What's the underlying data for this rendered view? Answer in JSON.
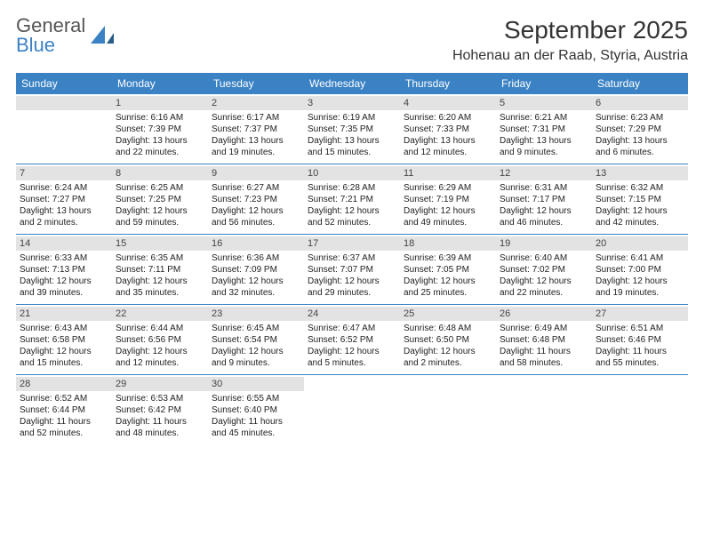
{
  "logo": {
    "word1": "General",
    "word2": "Blue"
  },
  "title": "September 2025",
  "location": "Hohenau an der Raab, Styria, Austria",
  "colors": {
    "accent": "#3b82c4",
    "dayBarBg": "#e3e3e3",
    "text": "#222222",
    "bg": "#ffffff"
  },
  "daysOfWeek": [
    "Sunday",
    "Monday",
    "Tuesday",
    "Wednesday",
    "Thursday",
    "Friday",
    "Saturday"
  ],
  "weeks": [
    [
      {
        "n": "",
        "lines": []
      },
      {
        "n": "1",
        "lines": [
          "Sunrise: 6:16 AM",
          "Sunset: 7:39 PM",
          "Daylight: 13 hours",
          "and 22 minutes."
        ]
      },
      {
        "n": "2",
        "lines": [
          "Sunrise: 6:17 AM",
          "Sunset: 7:37 PM",
          "Daylight: 13 hours",
          "and 19 minutes."
        ]
      },
      {
        "n": "3",
        "lines": [
          "Sunrise: 6:19 AM",
          "Sunset: 7:35 PM",
          "Daylight: 13 hours",
          "and 15 minutes."
        ]
      },
      {
        "n": "4",
        "lines": [
          "Sunrise: 6:20 AM",
          "Sunset: 7:33 PM",
          "Daylight: 13 hours",
          "and 12 minutes."
        ]
      },
      {
        "n": "5",
        "lines": [
          "Sunrise: 6:21 AM",
          "Sunset: 7:31 PM",
          "Daylight: 13 hours",
          "and 9 minutes."
        ]
      },
      {
        "n": "6",
        "lines": [
          "Sunrise: 6:23 AM",
          "Sunset: 7:29 PM",
          "Daylight: 13 hours",
          "and 6 minutes."
        ]
      }
    ],
    [
      {
        "n": "7",
        "lines": [
          "Sunrise: 6:24 AM",
          "Sunset: 7:27 PM",
          "Daylight: 13 hours",
          "and 2 minutes."
        ]
      },
      {
        "n": "8",
        "lines": [
          "Sunrise: 6:25 AM",
          "Sunset: 7:25 PM",
          "Daylight: 12 hours",
          "and 59 minutes."
        ]
      },
      {
        "n": "9",
        "lines": [
          "Sunrise: 6:27 AM",
          "Sunset: 7:23 PM",
          "Daylight: 12 hours",
          "and 56 minutes."
        ]
      },
      {
        "n": "10",
        "lines": [
          "Sunrise: 6:28 AM",
          "Sunset: 7:21 PM",
          "Daylight: 12 hours",
          "and 52 minutes."
        ]
      },
      {
        "n": "11",
        "lines": [
          "Sunrise: 6:29 AM",
          "Sunset: 7:19 PM",
          "Daylight: 12 hours",
          "and 49 minutes."
        ]
      },
      {
        "n": "12",
        "lines": [
          "Sunrise: 6:31 AM",
          "Sunset: 7:17 PM",
          "Daylight: 12 hours",
          "and 46 minutes."
        ]
      },
      {
        "n": "13",
        "lines": [
          "Sunrise: 6:32 AM",
          "Sunset: 7:15 PM",
          "Daylight: 12 hours",
          "and 42 minutes."
        ]
      }
    ],
    [
      {
        "n": "14",
        "lines": [
          "Sunrise: 6:33 AM",
          "Sunset: 7:13 PM",
          "Daylight: 12 hours",
          "and 39 minutes."
        ]
      },
      {
        "n": "15",
        "lines": [
          "Sunrise: 6:35 AM",
          "Sunset: 7:11 PM",
          "Daylight: 12 hours",
          "and 35 minutes."
        ]
      },
      {
        "n": "16",
        "lines": [
          "Sunrise: 6:36 AM",
          "Sunset: 7:09 PM",
          "Daylight: 12 hours",
          "and 32 minutes."
        ]
      },
      {
        "n": "17",
        "lines": [
          "Sunrise: 6:37 AM",
          "Sunset: 7:07 PM",
          "Daylight: 12 hours",
          "and 29 minutes."
        ]
      },
      {
        "n": "18",
        "lines": [
          "Sunrise: 6:39 AM",
          "Sunset: 7:05 PM",
          "Daylight: 12 hours",
          "and 25 minutes."
        ]
      },
      {
        "n": "19",
        "lines": [
          "Sunrise: 6:40 AM",
          "Sunset: 7:02 PM",
          "Daylight: 12 hours",
          "and 22 minutes."
        ]
      },
      {
        "n": "20",
        "lines": [
          "Sunrise: 6:41 AM",
          "Sunset: 7:00 PM",
          "Daylight: 12 hours",
          "and 19 minutes."
        ]
      }
    ],
    [
      {
        "n": "21",
        "lines": [
          "Sunrise: 6:43 AM",
          "Sunset: 6:58 PM",
          "Daylight: 12 hours",
          "and 15 minutes."
        ]
      },
      {
        "n": "22",
        "lines": [
          "Sunrise: 6:44 AM",
          "Sunset: 6:56 PM",
          "Daylight: 12 hours",
          "and 12 minutes."
        ]
      },
      {
        "n": "23",
        "lines": [
          "Sunrise: 6:45 AM",
          "Sunset: 6:54 PM",
          "Daylight: 12 hours",
          "and 9 minutes."
        ]
      },
      {
        "n": "24",
        "lines": [
          "Sunrise: 6:47 AM",
          "Sunset: 6:52 PM",
          "Daylight: 12 hours",
          "and 5 minutes."
        ]
      },
      {
        "n": "25",
        "lines": [
          "Sunrise: 6:48 AM",
          "Sunset: 6:50 PM",
          "Daylight: 12 hours",
          "and 2 minutes."
        ]
      },
      {
        "n": "26",
        "lines": [
          "Sunrise: 6:49 AM",
          "Sunset: 6:48 PM",
          "Daylight: 11 hours",
          "and 58 minutes."
        ]
      },
      {
        "n": "27",
        "lines": [
          "Sunrise: 6:51 AM",
          "Sunset: 6:46 PM",
          "Daylight: 11 hours",
          "and 55 minutes."
        ]
      }
    ],
    [
      {
        "n": "28",
        "lines": [
          "Sunrise: 6:52 AM",
          "Sunset: 6:44 PM",
          "Daylight: 11 hours",
          "and 52 minutes."
        ]
      },
      {
        "n": "29",
        "lines": [
          "Sunrise: 6:53 AM",
          "Sunset: 6:42 PM",
          "Daylight: 11 hours",
          "and 48 minutes."
        ]
      },
      {
        "n": "30",
        "lines": [
          "Sunrise: 6:55 AM",
          "Sunset: 6:40 PM",
          "Daylight: 11 hours",
          "and 45 minutes."
        ]
      },
      {
        "n": "",
        "lines": []
      },
      {
        "n": "",
        "lines": []
      },
      {
        "n": "",
        "lines": []
      },
      {
        "n": "",
        "lines": []
      }
    ]
  ]
}
